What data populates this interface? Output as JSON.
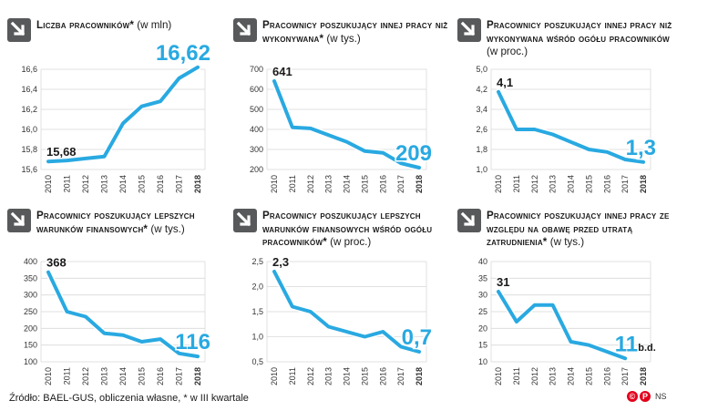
{
  "footer": {
    "source": "Źródło: BAEL-GUS, obliczenia własne, * w III kwartale",
    "logo": {
      "c_mark": "©",
      "p_mark": "P",
      "ns": "NS"
    }
  },
  "colors": {
    "line": "#29a9e1",
    "arrow_bg": "#58595b",
    "grid": "#d9d9d9"
  },
  "chart_data": [
    {
      "type": "line",
      "title": "Liczba pracowników*",
      "unit": "(w mln)",
      "x": [
        "2010",
        "2011",
        "2012",
        "2013",
        "2014",
        "2015",
        "2016",
        "2017",
        "2018"
      ],
      "values": [
        15.68,
        15.69,
        15.71,
        15.73,
        16.06,
        16.23,
        16.28,
        16.51,
        16.62
      ],
      "yticks": [
        "15,6",
        "15,8",
        "16,0",
        "16,2",
        "16,4",
        "16,6"
      ],
      "ylim": [
        15.6,
        16.6
      ],
      "first_label": "15,68",
      "last_label": "16,62"
    },
    {
      "type": "line",
      "title": "Pracownicy poszukujący innej pracy niż wykonywana*",
      "unit": "(w tys.)",
      "x": [
        "2010",
        "2011",
        "2012",
        "2013",
        "2014",
        "2015",
        "2016",
        "2017",
        "2018"
      ],
      "values": [
        641,
        410,
        405,
        372,
        338,
        292,
        283,
        231,
        209
      ],
      "yticks": [
        "200",
        "300",
        "400",
        "500",
        "600",
        "700"
      ],
      "ylim": [
        200,
        700
      ],
      "first_label": "641",
      "last_label": "209"
    },
    {
      "type": "line",
      "title": "Pracownicy poszukujący innej pracy niż wykonywana wśród ogółu pracowników",
      "unit": "(w proc.)",
      "x": [
        "2010",
        "2011",
        "2012",
        "2013",
        "2014",
        "2015",
        "2016",
        "2017",
        "2018"
      ],
      "values": [
        4.1,
        2.6,
        2.6,
        2.4,
        2.1,
        1.8,
        1.7,
        1.4,
        1.3
      ],
      "yticks": [
        "1,0",
        "1,8",
        "2,6",
        "3,4",
        "4,2",
        "5,0"
      ],
      "ylim": [
        1.0,
        5.0
      ],
      "first_label": "4,1",
      "last_label": "1,3"
    },
    {
      "type": "line",
      "title": "Pracownicy poszukujący lepszych warunków finansowych*",
      "unit": "(w tys.)",
      "x": [
        "2010",
        "2011",
        "2012",
        "2013",
        "2014",
        "2015",
        "2016",
        "2017",
        "2018"
      ],
      "values": [
        368,
        250,
        235,
        185,
        180,
        160,
        168,
        125,
        116
      ],
      "yticks": [
        "100",
        "150",
        "200",
        "250",
        "300",
        "350",
        "400"
      ],
      "ylim": [
        100,
        400
      ],
      "first_label": "368",
      "last_label": "116"
    },
    {
      "type": "line",
      "title": "Pracownicy poszukujący lepszych warunków finansowych wśród ogółu pracowników*",
      "unit": "(w proc.)",
      "x": [
        "2010",
        "2011",
        "2012",
        "2013",
        "2014",
        "2015",
        "2016",
        "2017",
        "2018"
      ],
      "values": [
        2.3,
        1.6,
        1.5,
        1.2,
        1.1,
        1.0,
        1.1,
        0.8,
        0.7
      ],
      "yticks": [
        "0,5",
        "1,0",
        "1,5",
        "2,0",
        "2,5"
      ],
      "ylim": [
        0.5,
        2.5
      ],
      "first_label": "2,3",
      "last_label": "0,7"
    },
    {
      "type": "line",
      "title": "Pracownicy poszukujący innej pracy ze względu na obawę przed utratą zatrudnienia*",
      "unit": "(w tys.)",
      "x": [
        "2010",
        "2011",
        "2012",
        "2013",
        "2014",
        "2015",
        "2016",
        "2017",
        "2018"
      ],
      "values": [
        31,
        22,
        27,
        27,
        16,
        15,
        13,
        11,
        null
      ],
      "yticks": [
        "10",
        "15",
        "20",
        "25",
        "30",
        "35",
        "40"
      ],
      "ylim": [
        10,
        40
      ],
      "first_label": "31",
      "last_label": "11",
      "na_label": "b.d."
    }
  ]
}
